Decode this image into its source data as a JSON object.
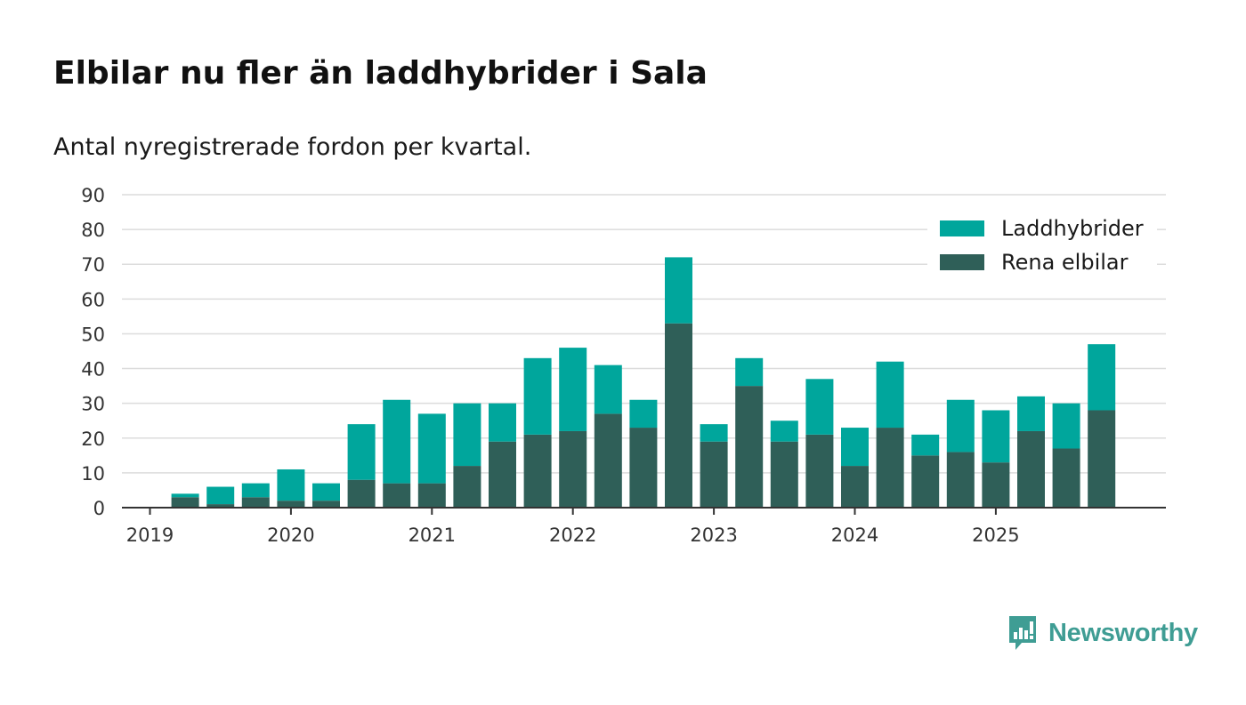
{
  "header": {
    "title": "Elbilar nu fler än laddhybrider i Sala",
    "subtitle": "Antal nyregistrerade fordon per kvartal."
  },
  "brand": {
    "name": "Newsworthy",
    "color": "#3f9d94",
    "icon": "newsworthy-chart-bubble-icon"
  },
  "chart_data": {
    "type": "bar",
    "stacked": true,
    "title": "Elbilar nu fler än laddhybrider i Sala",
    "subtitle": "Antal nyregistrerade fordon per kvartal.",
    "xlabel": "",
    "ylabel": "",
    "ylim": [
      0,
      90
    ],
    "yticks": [
      0,
      10,
      20,
      30,
      40,
      50,
      60,
      70,
      80,
      90
    ],
    "grid": true,
    "legend_position": "top-right",
    "x_tick_labels": [
      "2019",
      "2020",
      "2021",
      "2022",
      "2023",
      "2024",
      "2025"
    ],
    "categories": [
      "2019 Q1",
      "2019 Q2",
      "2019 Q3",
      "2019 Q4",
      "2020 Q1",
      "2020 Q2",
      "2020 Q3",
      "2020 Q4",
      "2021 Q1",
      "2021 Q2",
      "2021 Q3",
      "2021 Q4",
      "2022 Q1",
      "2022 Q2",
      "2022 Q3",
      "2022 Q4",
      "2023 Q1",
      "2023 Q2",
      "2023 Q3",
      "2023 Q4",
      "2024 Q1",
      "2024 Q2",
      "2024 Q3",
      "2024 Q4",
      "2025 Q1",
      "2025 Q2",
      "2025 Q3",
      "2025 Q4"
    ],
    "series": [
      {
        "name": "Rena elbilar",
        "color": "#2f5f58",
        "values": [
          0,
          3,
          1,
          3,
          2,
          2,
          8,
          7,
          7,
          12,
          19,
          21,
          22,
          27,
          23,
          53,
          19,
          35,
          19,
          21,
          12,
          23,
          15,
          16,
          13,
          22,
          17,
          28
        ]
      },
      {
        "name": "Laddhybrider",
        "color": "#00a69c",
        "values": [
          0,
          1,
          5,
          4,
          9,
          5,
          16,
          24,
          20,
          18,
          11,
          22,
          24,
          14,
          8,
          19,
          5,
          8,
          6,
          16,
          11,
          19,
          6,
          15,
          15,
          10,
          13,
          19
        ]
      }
    ],
    "legend": [
      "Laddhybrider",
      "Rena elbilar"
    ]
  }
}
